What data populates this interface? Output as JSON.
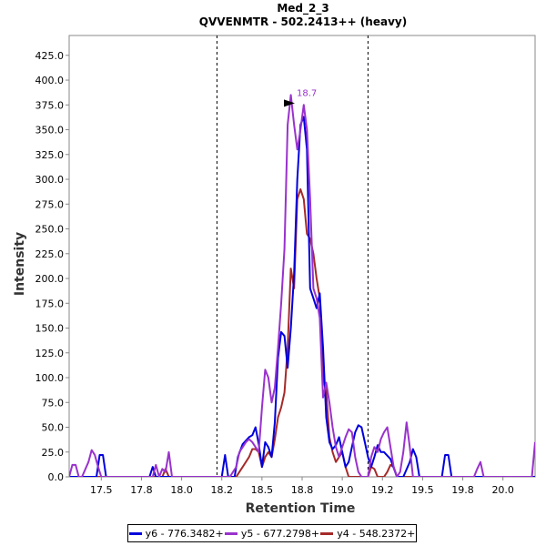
{
  "chart_data": {
    "type": "line",
    "title": "Med_2_3",
    "subtitle": "QVVENMTR - 502.2413++ (heavy)",
    "xlabel": "Retention Time",
    "ylabel": "Intensity",
    "xlim": [
      17.3,
      20.2
    ],
    "ylim": [
      0,
      445
    ],
    "x_ticks": [
      "17.5",
      "17.8",
      "18.0",
      "18.2",
      "18.5",
      "18.8",
      "19.0",
      "19.2",
      "19.5",
      "19.8",
      "20.0"
    ],
    "x_tick_values": [
      17.5,
      17.75,
      18.0,
      18.25,
      18.5,
      18.75,
      19.0,
      19.25,
      19.5,
      19.75,
      20.0
    ],
    "y_ticks": [
      "0.0",
      "25.0",
      "50.0",
      "75.0",
      "100.0",
      "125.0",
      "150.0",
      "175.0",
      "200.0",
      "225.0",
      "250.0",
      "275.0",
      "300.0",
      "325.0",
      "350.0",
      "375.0",
      "400.0",
      "425.0"
    ],
    "y_tick_values": [
      0,
      25,
      50,
      75,
      100,
      125,
      150,
      175,
      200,
      225,
      250,
      275,
      300,
      325,
      350,
      375,
      400,
      425
    ],
    "vlines": [
      18.22,
      19.16
    ],
    "peak_annotation": {
      "label": "18.7",
      "x": 18.75,
      "y": 385,
      "color": "#9932cc"
    },
    "series": [
      {
        "name": "y6 - 776.3482+",
        "color": "#0000dd",
        "points": [
          [
            17.3,
            0
          ],
          [
            17.47,
            0
          ],
          [
            17.49,
            22
          ],
          [
            17.51,
            22
          ],
          [
            17.53,
            0
          ],
          [
            17.8,
            0
          ],
          [
            17.82,
            10
          ],
          [
            17.84,
            0
          ],
          [
            18.25,
            0
          ],
          [
            18.27,
            22
          ],
          [
            18.29,
            0
          ],
          [
            18.33,
            0
          ],
          [
            18.35,
            20
          ],
          [
            18.38,
            33
          ],
          [
            18.42,
            40
          ],
          [
            18.44,
            42
          ],
          [
            18.46,
            50
          ],
          [
            18.48,
            33
          ],
          [
            18.5,
            10
          ],
          [
            18.52,
            35
          ],
          [
            18.54,
            30
          ],
          [
            18.56,
            20
          ],
          [
            18.58,
            55
          ],
          [
            18.6,
            120
          ],
          [
            18.62,
            146
          ],
          [
            18.64,
            142
          ],
          [
            18.66,
            110
          ],
          [
            18.68,
            150
          ],
          [
            18.7,
            205
          ],
          [
            18.72,
            300
          ],
          [
            18.74,
            355
          ],
          [
            18.76,
            363
          ],
          [
            18.78,
            330
          ],
          [
            18.8,
            190
          ],
          [
            18.82,
            180
          ],
          [
            18.84,
            170
          ],
          [
            18.86,
            185
          ],
          [
            18.88,
            130
          ],
          [
            18.9,
            60
          ],
          [
            18.92,
            35
          ],
          [
            18.94,
            28
          ],
          [
            18.96,
            32
          ],
          [
            18.98,
            40
          ],
          [
            19.0,
            25
          ],
          [
            19.02,
            10
          ],
          [
            19.04,
            15
          ],
          [
            19.06,
            30
          ],
          [
            19.08,
            45
          ],
          [
            19.1,
            52
          ],
          [
            19.12,
            50
          ],
          [
            19.14,
            35
          ],
          [
            19.16,
            20
          ],
          [
            19.18,
            10
          ],
          [
            19.2,
            20
          ],
          [
            19.22,
            32
          ],
          [
            19.24,
            25
          ],
          [
            19.26,
            25
          ],
          [
            19.3,
            18
          ],
          [
            19.34,
            0
          ],
          [
            19.38,
            0
          ],
          [
            19.42,
            15
          ],
          [
            19.44,
            28
          ],
          [
            19.46,
            20
          ],
          [
            19.48,
            0
          ],
          [
            19.62,
            0
          ],
          [
            19.64,
            22
          ],
          [
            19.66,
            22
          ],
          [
            19.68,
            0
          ],
          [
            20.2,
            0
          ]
        ]
      },
      {
        "name": "y5 - 677.2798+",
        "color": "#9932cc",
        "points": [
          [
            17.3,
            0
          ],
          [
            17.32,
            12
          ],
          [
            17.34,
            12
          ],
          [
            17.36,
            0
          ],
          [
            17.38,
            0
          ],
          [
            17.42,
            15
          ],
          [
            17.44,
            27
          ],
          [
            17.46,
            22
          ],
          [
            17.48,
            10
          ],
          [
            17.5,
            0
          ],
          [
            17.82,
            0
          ],
          [
            17.84,
            12
          ],
          [
            17.86,
            0
          ],
          [
            17.88,
            8
          ],
          [
            17.9,
            5
          ],
          [
            17.92,
            25
          ],
          [
            17.94,
            0
          ],
          [
            18.3,
            0
          ],
          [
            18.32,
            5
          ],
          [
            18.34,
            10
          ],
          [
            18.36,
            25
          ],
          [
            18.38,
            30
          ],
          [
            18.4,
            35
          ],
          [
            18.42,
            38
          ],
          [
            18.44,
            35
          ],
          [
            18.46,
            30
          ],
          [
            18.48,
            25
          ],
          [
            18.5,
            70
          ],
          [
            18.52,
            108
          ],
          [
            18.54,
            100
          ],
          [
            18.56,
            75
          ],
          [
            18.58,
            90
          ],
          [
            18.6,
            130
          ],
          [
            18.62,
            175
          ],
          [
            18.64,
            230
          ],
          [
            18.66,
            355
          ],
          [
            18.68,
            385
          ],
          [
            18.7,
            355
          ],
          [
            18.72,
            330
          ],
          [
            18.74,
            350
          ],
          [
            18.76,
            375
          ],
          [
            18.78,
            350
          ],
          [
            18.8,
            280
          ],
          [
            18.82,
            190
          ],
          [
            18.84,
            180
          ],
          [
            18.86,
            160
          ],
          [
            18.88,
            80
          ],
          [
            18.9,
            95
          ],
          [
            18.92,
            75
          ],
          [
            18.94,
            50
          ],
          [
            18.96,
            30
          ],
          [
            18.98,
            20
          ],
          [
            19.0,
            30
          ],
          [
            19.02,
            40
          ],
          [
            19.04,
            48
          ],
          [
            19.06,
            45
          ],
          [
            19.08,
            20
          ],
          [
            19.1,
            5
          ],
          [
            19.12,
            0
          ],
          [
            19.16,
            0
          ],
          [
            19.18,
            20
          ],
          [
            19.2,
            30
          ],
          [
            19.22,
            25
          ],
          [
            19.24,
            38
          ],
          [
            19.26,
            45
          ],
          [
            19.28,
            50
          ],
          [
            19.3,
            30
          ],
          [
            19.32,
            10
          ],
          [
            19.34,
            0
          ],
          [
            19.36,
            5
          ],
          [
            19.38,
            25
          ],
          [
            19.4,
            55
          ],
          [
            19.42,
            30
          ],
          [
            19.44,
            0
          ],
          [
            19.82,
            0
          ],
          [
            19.84,
            8
          ],
          [
            19.86,
            15
          ],
          [
            19.88,
            0
          ],
          [
            20.18,
            0
          ],
          [
            20.2,
            35
          ]
        ]
      },
      {
        "name": "y4 - 548.2372+",
        "color": "#a52a2a",
        "points": [
          [
            17.3,
            0
          ],
          [
            17.88,
            0
          ],
          [
            17.9,
            8
          ],
          [
            17.92,
            0
          ],
          [
            18.34,
            0
          ],
          [
            18.36,
            5
          ],
          [
            18.38,
            10
          ],
          [
            18.42,
            20
          ],
          [
            18.44,
            28
          ],
          [
            18.46,
            28
          ],
          [
            18.48,
            25
          ],
          [
            18.5,
            10
          ],
          [
            18.52,
            20
          ],
          [
            18.54,
            25
          ],
          [
            18.56,
            20
          ],
          [
            18.58,
            38
          ],
          [
            18.6,
            60
          ],
          [
            18.62,
            70
          ],
          [
            18.64,
            85
          ],
          [
            18.66,
            130
          ],
          [
            18.68,
            210
          ],
          [
            18.7,
            190
          ],
          [
            18.72,
            280
          ],
          [
            18.74,
            290
          ],
          [
            18.76,
            280
          ],
          [
            18.78,
            245
          ],
          [
            18.8,
            240
          ],
          [
            18.82,
            225
          ],
          [
            18.84,
            200
          ],
          [
            18.86,
            180
          ],
          [
            18.88,
            100
          ],
          [
            18.9,
            85
          ],
          [
            18.92,
            40
          ],
          [
            18.94,
            25
          ],
          [
            18.96,
            15
          ],
          [
            18.98,
            20
          ],
          [
            19.0,
            25
          ],
          [
            19.02,
            10
          ],
          [
            19.04,
            0
          ],
          [
            19.16,
            0
          ],
          [
            19.18,
            10
          ],
          [
            19.2,
            8
          ],
          [
            19.22,
            0
          ],
          [
            19.26,
            0
          ],
          [
            19.28,
            5
          ],
          [
            19.3,
            12
          ],
          [
            19.32,
            10
          ],
          [
            19.34,
            0
          ],
          [
            20.2,
            0
          ]
        ]
      }
    ],
    "legend_placement": "bottom-center"
  }
}
